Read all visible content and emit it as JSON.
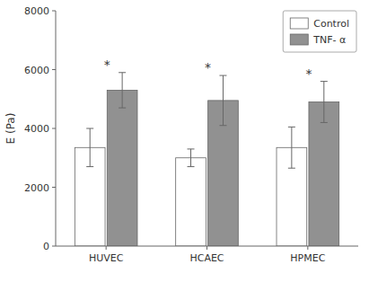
{
  "chart_data": {
    "type": "bar",
    "ylabel": "E (Pa)",
    "categories": [
      "HUVEC",
      "HCAEC",
      "HPMEC"
    ],
    "series": [
      {
        "name": "Control",
        "color": "#ffffff",
        "values": [
          3350,
          3000,
          3350
        ],
        "errors": [
          650,
          300,
          700
        ]
      },
      {
        "name": "TNF- α",
        "color": "#919191",
        "values": [
          5300,
          4950,
          4900
        ],
        "errors": [
          600,
          850,
          700
        ]
      }
    ],
    "annotations": [
      "*",
      "*",
      "*"
    ],
    "ylim": [
      0,
      8000
    ],
    "yticks": [
      0,
      2000,
      4000,
      6000,
      8000
    ],
    "grid": false,
    "legend": "upper right"
  }
}
